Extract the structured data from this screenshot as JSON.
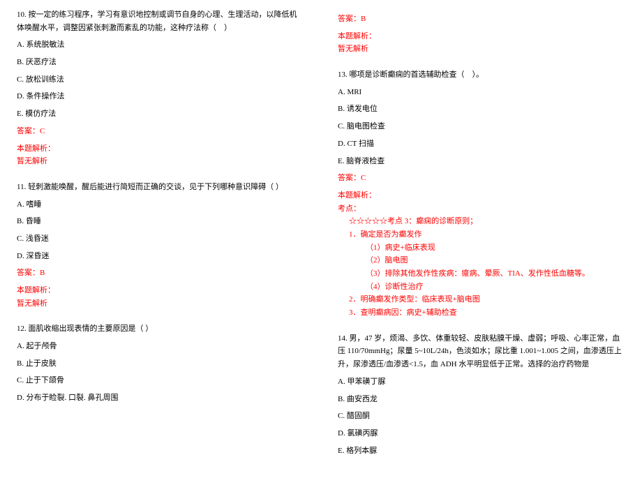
{
  "leftColumn": {
    "q10": {
      "text": "10. 按一定的练习程序，学习有意识地控制或调节自身的心理、生理活动，以降低机体唤醒水平，调整因紧张刺激而紊乱的功能，这种疗法称（　）",
      "options": {
        "a": "A. 系统脱敏法",
        "b": "B. 厌恶疗法",
        "c": "C. 放松训练法",
        "d": "D. 条件操作法",
        "e": "E. 模仿疗法"
      },
      "answer": "答案：C",
      "analysisLabel": "本题解析：",
      "analysisNone": "暂无解析"
    },
    "q11": {
      "text": "11. 轻刺激能唤醒，醒后能进行简短而正确的交谈，见于下列哪种意识障碍（ ）",
      "options": {
        "a": "A. 嗜睡",
        "b": "B. 昏睡",
        "c": "C. 浅昏迷",
        "d": "D. 深昏迷"
      },
      "answer": "答案：B",
      "analysisLabel": "本题解析：",
      "analysisNone": "暂无解析"
    },
    "q12": {
      "text": "12. 面肌收缩出现表情的主要原因是（ ）",
      "options": {
        "a": "A. 起于颅骨",
        "b": "B. 止于皮肤",
        "c": "C. 止于下颌骨",
        "d": "D. 分布于睑裂. 口裂. 鼻孔周围"
      }
    }
  },
  "rightColumn": {
    "q12cont": {
      "answer": "答案：B",
      "analysisLabel": "本题解析：",
      "analysisNone": "暂无解析"
    },
    "q13": {
      "text": "13. 哪项是诊断癫痫的首选辅助检查（　）。",
      "options": {
        "a": "A. MRI",
        "b": "B. 诱发电位",
        "c": "C. 脑电图检查",
        "d": "D. CT 扫描",
        "e": "E. 脑脊液检查"
      },
      "answer": "答案：C",
      "analysisLabel": "本题解析：",
      "analysis": {
        "l1": "考点：",
        "l2": "☆☆☆☆☆考点 3：癫痫的诊断原则；",
        "l3": "1．确定是否为癫发作",
        "l4": "（1）病史+临床表现",
        "l5": "（2）脑电图",
        "l6": "（3）排除其他发作性疾病：癔病、晕厥、TIA、发作性低血糖等。",
        "l7": "（4）诊断性治疗",
        "l8": "2．明确癫发作类型：临床表现+脑电图",
        "l9": "3．查明癫病因：病史+辅助检查"
      }
    },
    "q14": {
      "text": "14. 男，47 岁，烦渴、多饮、体重较轻、皮肤粘膜干燥、虚弱；呼吸、心率正常，血压 110/70mmHg；尿量 5~10L/24h，色淡如水；尿比重 1.001~1.005 之间，血渗透压上升，尿渗透压/血渗透<1.5，血 ADH 水平明显低于正常。选择的治疗药物是",
      "options": {
        "a": "A. 甲苯磺丁脲",
        "b": "B. 曲安西龙",
        "c": "C. 醋固酮",
        "d": "D. 氯磺丙脲",
        "e": "E. 格列本脲"
      }
    }
  }
}
